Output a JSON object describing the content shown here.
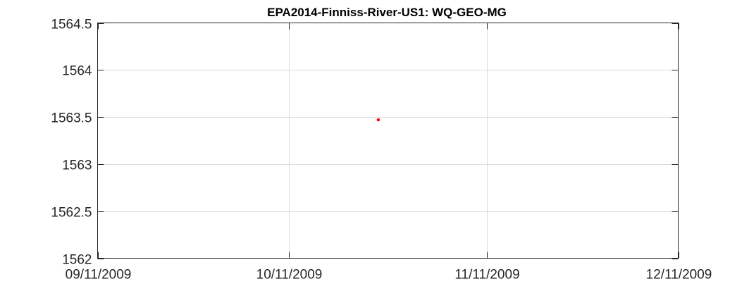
{
  "chart_data": {
    "type": "scatter",
    "title": "EPA2014-Finniss-River-US1: WQ-GEO-MG",
    "xlabel": "",
    "ylabel": "",
    "x_ticks": [
      "09/11/2009",
      "10/11/2009",
      "11/11/2009",
      "12/11/2009"
    ],
    "x_range_days": [
      0,
      91
    ],
    "y_ticks": [
      "1564.5",
      "1564",
      "1563.5",
      "1563",
      "1562.5",
      "1562"
    ],
    "ylim": [
      1562,
      1564.5
    ],
    "grid": true,
    "points": [
      {
        "x": "10/25/2009",
        "y": 1563.47
      }
    ],
    "marker_color": "#ff0000"
  }
}
